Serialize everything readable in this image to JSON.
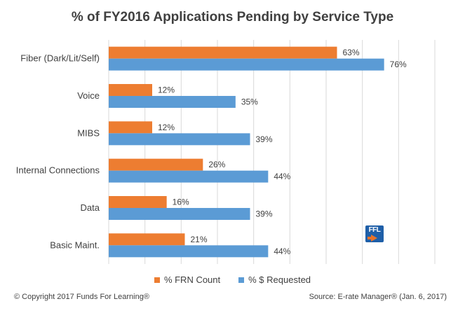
{
  "title": "% of FY2016 Applications Pending by Service Type",
  "legend": {
    "frn_label": "% FRN Count",
    "req_label": "% $ Requested"
  },
  "footer": {
    "copyright": "© Copyright 2017 Funds For Learning®",
    "source": "Source: E-rate Manager® (Jan. 6, 2017)"
  },
  "logo": {
    "text": "FFL",
    "icon": "ffl-logo"
  },
  "colors": {
    "frn": "#ed7d31",
    "requested": "#5b9bd5",
    "grid": "#d9d9d9"
  },
  "chart_data": {
    "type": "bar",
    "orientation": "horizontal",
    "categories": [
      "Fiber (Dark/Lit/Self)",
      "Voice",
      "MIBS",
      "Internal Connections",
      "Data",
      "Basic Maint."
    ],
    "series": [
      {
        "name": "% FRN Count",
        "values": [
          63,
          12,
          12,
          26,
          16,
          21
        ]
      },
      {
        "name": "% $ Requested",
        "values": [
          76,
          35,
          39,
          44,
          39,
          44
        ]
      }
    ],
    "value_suffix": "%",
    "xlim": [
      0,
      90
    ],
    "grid": true,
    "legend_position": "bottom",
    "title": "% of FY2016 Applications Pending by Service Type"
  }
}
